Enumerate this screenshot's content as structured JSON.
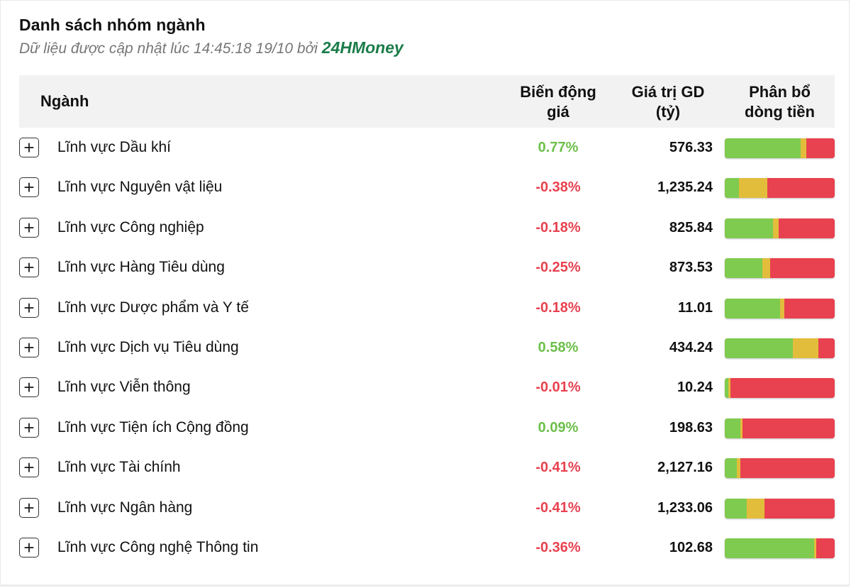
{
  "header": {
    "title": "Danh sách nhóm ngành",
    "subtitle_prefix": "Dữ liệu được cập nhật lúc 14:45:18 19/10 bởi ",
    "brand": "24HMoney"
  },
  "table": {
    "columns": {
      "nganh": "Ngành",
      "bien_dong_1": "Biến động",
      "bien_dong_2": "giá",
      "gia_tri_1": "Giá trị GD",
      "gia_tri_2": "(tỷ)",
      "phan_bo_1": "Phân bổ",
      "phan_bo_2": "dòng tiền"
    },
    "expand_symbol": "+",
    "colors": {
      "up": "#6cc04a",
      "down": "#e8414f",
      "bar_green": "#7ecb50",
      "bar_yellow": "#e2bd3c",
      "bar_red": "#e8414f"
    },
    "rows": [
      {
        "name": "Lĩnh vực Dầu khí",
        "change": "0.77%",
        "direction": "up",
        "value": "576.33",
        "flow": {
          "green": 0.69,
          "yellow": 0.05,
          "red": 0.26
        }
      },
      {
        "name": "Lĩnh vực Nguyên vật liệu",
        "change": "-0.38%",
        "direction": "down",
        "value": "1,235.24",
        "flow": {
          "green": 0.13,
          "yellow": 0.26,
          "red": 0.61
        }
      },
      {
        "name": "Lĩnh vực Công nghiệp",
        "change": "-0.18%",
        "direction": "down",
        "value": "825.84",
        "flow": {
          "green": 0.44,
          "yellow": 0.05,
          "red": 0.51
        }
      },
      {
        "name": "Lĩnh vực Hàng Tiêu dùng",
        "change": "-0.25%",
        "direction": "down",
        "value": "873.53",
        "flow": {
          "green": 0.34,
          "yellow": 0.07,
          "red": 0.59
        }
      },
      {
        "name": "Lĩnh vực Dược phẩm và Y tế",
        "change": "-0.18%",
        "direction": "down",
        "value": "11.01",
        "flow": {
          "green": 0.5,
          "yellow": 0.04,
          "red": 0.46
        }
      },
      {
        "name": "Lĩnh vực Dịch vụ Tiêu dùng",
        "change": "0.58%",
        "direction": "up",
        "value": "434.24",
        "flow": {
          "green": 0.62,
          "yellow": 0.23,
          "red": 0.15
        }
      },
      {
        "name": "Lĩnh vực Viễn thông",
        "change": "-0.01%",
        "direction": "down",
        "value": "10.24",
        "flow": {
          "green": 0.03,
          "yellow": 0.02,
          "red": 0.95
        }
      },
      {
        "name": "Lĩnh vực Tiện ích Cộng đồng",
        "change": "0.09%",
        "direction": "up",
        "value": "198.63",
        "flow": {
          "green": 0.14,
          "yellow": 0.02,
          "red": 0.84
        }
      },
      {
        "name": "Lĩnh vực Tài chính",
        "change": "-0.41%",
        "direction": "down",
        "value": "2,127.16",
        "flow": {
          "green": 0.11,
          "yellow": 0.03,
          "red": 0.86
        }
      },
      {
        "name": "Lĩnh vực Ngân hàng",
        "change": "-0.41%",
        "direction": "down",
        "value": "1,233.06",
        "flow": {
          "green": 0.2,
          "yellow": 0.16,
          "red": 0.64
        }
      },
      {
        "name": "Lĩnh vực Công nghệ Thông tin",
        "change": "-0.36%",
        "direction": "down",
        "value": "102.68",
        "flow": {
          "green": 0.81,
          "yellow": 0.02,
          "red": 0.17
        }
      }
    ]
  }
}
